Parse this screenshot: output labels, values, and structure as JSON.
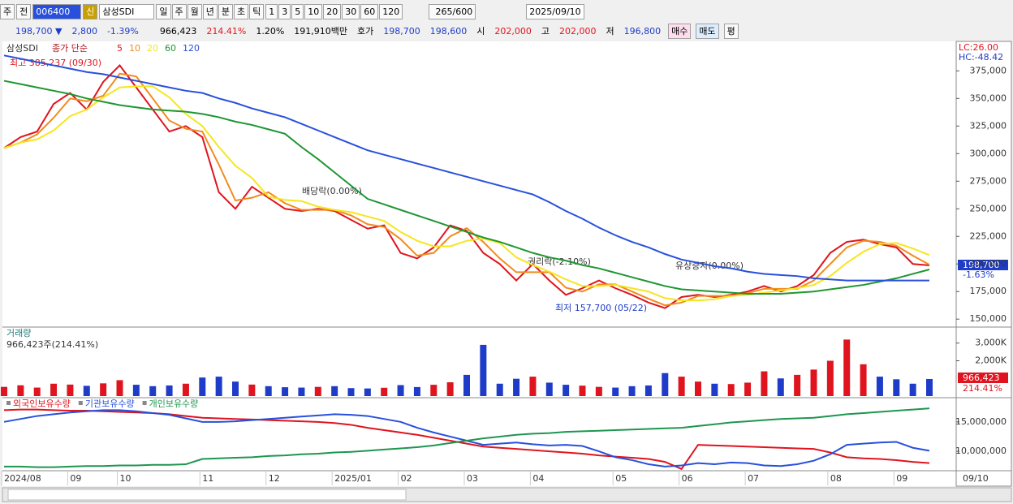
{
  "toolbar": {
    "period": "주",
    "prev": "전",
    "code": "006400",
    "badge": "신",
    "name": "삼성SDI",
    "intervals": [
      "일",
      "주",
      "월",
      "년",
      "분",
      "초",
      "틱"
    ],
    "multipliers": [
      "1",
      "3",
      "5",
      "10",
      "20",
      "30",
      "60",
      "120"
    ],
    "count": "265/600",
    "date": "2025/09/10"
  },
  "quote_bar": {
    "price": "198,700 ▼",
    "change": "2,800",
    "change_pct": "-1.39%",
    "volume": "966,423",
    "volume_pct": "214.41%",
    "turnover_pct": "1.20%",
    "amount": "191,910백만",
    "ask_label": "호가",
    "ask": "198,700",
    "bid": "198,600",
    "open_label": "시",
    "open": "202,000",
    "high_label": "고",
    "high": "202,000",
    "low_label": "저",
    "low": "196,800",
    "buy": "매수",
    "sell": "매도",
    "eval": "평"
  },
  "chart_data": [
    {
      "type": "line",
      "title": "삼성SDI",
      "subtitle": "종가 단순",
      "categories": [
        "2024/08",
        null,
        null,
        null,
        "09",
        null,
        null,
        "10",
        null,
        null,
        null,
        null,
        "11",
        null,
        null,
        null,
        "12",
        null,
        null,
        null,
        "2025/01",
        null,
        null,
        null,
        "02",
        null,
        null,
        null,
        "03",
        null,
        null,
        null,
        "04",
        null,
        null,
        null,
        null,
        "05",
        null,
        null,
        null,
        "06",
        null,
        null,
        null,
        "07",
        null,
        null,
        null,
        null,
        "08",
        null,
        null,
        null,
        "09",
        null,
        null
      ],
      "last_date": "09/10",
      "series": [
        {
          "name": "5",
          "color": "#e0141e",
          "values": [
            305000,
            315000,
            320000,
            345000,
            355000,
            340000,
            365000,
            380000,
            360000,
            340000,
            320000,
            325000,
            315000,
            265000,
            250000,
            270000,
            260000,
            250000,
            248000,
            250000,
            248000,
            240000,
            232000,
            235000,
            210000,
            205000,
            215000,
            235000,
            230000,
            210000,
            200000,
            185000,
            200000,
            185000,
            172000,
            178000,
            185000,
            178000,
            172000,
            165000,
            160000,
            170000,
            172000,
            170000,
            172000,
            175000,
            180000,
            175000,
            180000,
            190000,
            210000,
            220000,
            222000,
            218000,
            215000,
            200000,
            198700
          ]
        },
        {
          "name": "10",
          "color": "#f08c1e",
          "values": [
            305000,
            310000,
            317500,
            332500,
            350000,
            347500,
            352500,
            372500,
            370000,
            350000,
            330000,
            322500,
            320000,
            290000,
            257500,
            260000,
            265000,
            255000,
            249000,
            249000,
            249000,
            244000,
            236000,
            233500,
            222500,
            207500,
            210000,
            225000,
            232500,
            220000,
            205000,
            192500,
            192500,
            192500,
            178500,
            175000,
            181500,
            181500,
            175000,
            168500,
            162500,
            165000,
            171000,
            171000,
            171000,
            173500,
            177500,
            177500,
            177500,
            185000,
            200000,
            215000,
            221000,
            220000,
            216500,
            207500,
            199300
          ]
        },
        {
          "name": "20",
          "color": "#f5e61e",
          "values": [
            305000,
            310000,
            313000,
            321000,
            334000,
            340000,
            351000,
            360000,
            361000,
            361000,
            351000,
            336000,
            325000,
            306000,
            289000,
            278000,
            261000,
            258000,
            257000,
            252000,
            249000,
            247000,
            243000,
            239000,
            229000,
            221000,
            216000,
            216000,
            221000,
            223000,
            219000,
            206000,
            199000,
            193000,
            186000,
            180000,
            180000,
            181000,
            178000,
            175000,
            169000,
            167000,
            167000,
            168000,
            171000,
            172000,
            174000,
            176000,
            178000,
            181000,
            189000,
            201000,
            211000,
            218000,
            219000,
            214000,
            208000
          ]
        },
        {
          "name": "60",
          "color": "#1e9632",
          "values": [
            366000,
            363000,
            360000,
            357000,
            354000,
            350000,
            347000,
            344000,
            342000,
            340000,
            339000,
            338000,
            336000,
            333000,
            329000,
            326000,
            322000,
            318000,
            306000,
            295000,
            283000,
            271000,
            259000,
            254000,
            249000,
            244000,
            239000,
            234000,
            229000,
            224000,
            220000,
            215000,
            210000,
            206000,
            203000,
            199000,
            196000,
            192000,
            188000,
            184000,
            180000,
            177000,
            176000,
            175000,
            174000,
            173000,
            173000,
            173000,
            174000,
            175000,
            177000,
            179000,
            181000,
            184000,
            187000,
            191000,
            195000
          ]
        },
        {
          "name": "120",
          "color": "#2850dc",
          "values": [
            389000,
            386000,
            383000,
            380000,
            377000,
            374000,
            372000,
            369000,
            366000,
            363000,
            360000,
            357000,
            355000,
            350000,
            346000,
            341000,
            337000,
            333000,
            327000,
            321000,
            315000,
            309000,
            303000,
            299000,
            295000,
            291000,
            287000,
            283000,
            279000,
            275000,
            271000,
            267000,
            263000,
            256000,
            248000,
            241000,
            233000,
            226000,
            220000,
            215000,
            209000,
            204000,
            201000,
            198000,
            196000,
            193000,
            191000,
            190000,
            189000,
            187000,
            186000,
            185000,
            185000,
            185000,
            185000,
            185000,
            185000
          ]
        }
      ],
      "ylim": [
        145000,
        401000
      ],
      "yticks": [
        {
          "value": 150000,
          "label": "150,000"
        },
        {
          "value": 175000,
          "label": "175,000"
        },
        {
          "value": 200000,
          "label": "200,000"
        },
        {
          "value": 225000,
          "label": "225,000"
        },
        {
          "value": 250000,
          "label": "250,000"
        },
        {
          "value": 275000,
          "label": "275,000"
        },
        {
          "value": 300000,
          "label": "300,000"
        },
        {
          "value": 325000,
          "label": "325,000"
        },
        {
          "value": 350000,
          "label": "350,000"
        },
        {
          "value": 375000,
          "label": "375,000"
        }
      ],
      "annotations": [
        "최고 385,237 (09/30)",
        "배당락(0.00%)",
        "권리락(-2.10%)",
        "유상증자(0.00%)",
        "최저 157,700 (05/22)"
      ],
      "lc": "LC:26.00",
      "hc": "HC:-48.42",
      "last_label": "198,700",
      "last_pct": "-1.63%"
    },
    {
      "type": "bar",
      "title": "거래량",
      "subtitle": "966,423주(214.41%)",
      "up_color": "#e0141e",
      "down_color": "#1e3cc8",
      "values": [
        520000,
        610000,
        480000,
        700000,
        650000,
        580000,
        720000,
        900000,
        640000,
        560000,
        600000,
        700000,
        1050000,
        1100000,
        820000,
        650000,
        560000,
        500000,
        480000,
        520000,
        560000,
        450000,
        430000,
        470000,
        620000,
        510000,
        640000,
        780000,
        1200000,
        2900000,
        700000,
        980000,
        1100000,
        760000,
        640000,
        590000,
        520000,
        480000,
        560000,
        600000,
        1300000,
        1100000,
        820000,
        700000,
        680000,
        760000,
        1400000,
        1000000,
        1200000,
        1500000,
        2000000,
        3200000,
        1800000,
        1100000,
        950000,
        700000,
        966423
      ],
      "ylim": [
        0,
        3700000
      ],
      "yticks": [
        {
          "value": 2000000,
          "label": "2,000K"
        },
        {
          "value": 3000000,
          "label": "3,000K"
        }
      ],
      "last_label": "966,423",
      "last_pct": "214.41%"
    },
    {
      "type": "line",
      "series": [
        {
          "name": "외국인보유수량",
          "color": "#e0141e",
          "values": [
            17000000,
            17100000,
            17100000,
            17000000,
            16900000,
            16900000,
            16800000,
            16700000,
            16600000,
            16500000,
            16300000,
            16000000,
            15700000,
            15600000,
            15500000,
            15400000,
            15300000,
            15200000,
            15100000,
            15000000,
            14800000,
            14500000,
            14000000,
            13600000,
            13200000,
            12800000,
            12300000,
            11800000,
            11300000,
            10800000,
            10600000,
            10400000,
            10200000,
            10000000,
            9800000,
            9600000,
            9300000,
            9100000,
            8900000,
            8700000,
            8200000,
            7000000,
            11100000,
            11000000,
            10900000,
            10800000,
            10700000,
            10600000,
            10500000,
            10400000,
            9800000,
            9000000,
            8800000,
            8700000,
            8500000,
            8200000,
            8000000
          ]
        },
        {
          "name": "기관보유수량",
          "color": "#2850dc",
          "values": [
            15000000,
            15500000,
            16000000,
            16300000,
            16600000,
            16800000,
            17000000,
            17000000,
            16800000,
            16500000,
            16200000,
            15600000,
            15000000,
            15000000,
            15100000,
            15300000,
            15500000,
            15700000,
            15900000,
            16100000,
            16300000,
            16200000,
            16000000,
            15500000,
            15000000,
            14000000,
            13200000,
            12500000,
            11800000,
            11100000,
            11300000,
            11500000,
            11200000,
            11000000,
            11100000,
            10900000,
            10000000,
            9000000,
            8500000,
            7800000,
            7400000,
            7600000,
            8000000,
            7800000,
            8100000,
            8000000,
            7600000,
            7500000,
            7800000,
            8400000,
            9500000,
            11100000,
            11300000,
            11500000,
            11600000,
            10600000,
            10100000
          ]
        },
        {
          "name": "개인보유수량",
          "color": "#1e9650",
          "values": [
            7400000,
            7400000,
            7300000,
            7300000,
            7400000,
            7500000,
            7500000,
            7600000,
            7600000,
            7700000,
            7700000,
            7800000,
            8700000,
            8800000,
            8900000,
            9000000,
            9200000,
            9300000,
            9500000,
            9600000,
            9800000,
            9900000,
            10100000,
            10300000,
            10500000,
            10700000,
            11000000,
            11400000,
            11800000,
            12200000,
            12500000,
            12800000,
            13000000,
            13100000,
            13300000,
            13400000,
            13500000,
            13600000,
            13700000,
            13800000,
            13900000,
            14000000,
            14300000,
            14600000,
            14900000,
            15100000,
            15300000,
            15500000,
            15600000,
            15700000,
            16000000,
            16300000,
            16500000,
            16700000,
            16900000,
            17100000,
            17300000
          ]
        }
      ],
      "ylim": [
        6700000,
        18700000
      ],
      "yticks": [
        {
          "value": 10000000,
          "label": "10,000,000"
        },
        {
          "value": 15000000,
          "label": "15,000,000"
        }
      ]
    }
  ]
}
